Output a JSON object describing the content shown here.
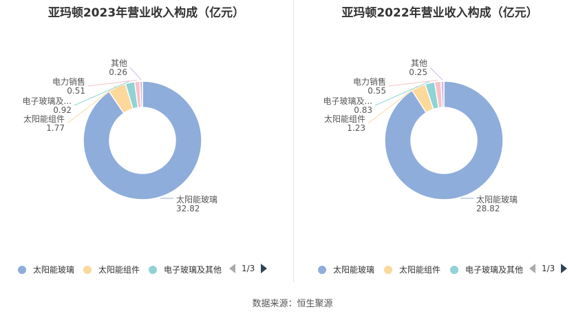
{
  "colors": [
    "#8eaddb",
    "#fcd89b",
    "#8fd3d6",
    "#f7c1c5",
    "#cdb9e5",
    "#7a8ff0"
  ],
  "legend": {
    "items": [
      "太阳能玻璃",
      "太阳能组件",
      "电子玻璃及其他"
    ],
    "page": "1/3"
  },
  "source_text": "数据来源：恒生聚源",
  "chart_data": [
    {
      "type": "pie",
      "title": "亚玛顿2023年营业收入构成（亿元）",
      "slices": [
        {
          "label": "太阳能玻璃",
          "value": 32.82
        },
        {
          "label": "太阳能组件",
          "value": 1.77
        },
        {
          "label": "电子玻璃及...",
          "value": 0.92
        },
        {
          "label": "电力销售",
          "value": 0.51
        },
        {
          "label": "其他",
          "value": 0.26
        }
      ]
    },
    {
      "type": "pie",
      "title": "亚玛顿2022年营业收入构成（亿元）",
      "slices": [
        {
          "label": "太阳能玻璃",
          "value": 28.82
        },
        {
          "label": "太阳能组件",
          "value": 1.23
        },
        {
          "label": "电子玻璃及...",
          "value": 0.83
        },
        {
          "label": "电力销售",
          "value": 0.55
        },
        {
          "label": "其他",
          "value": 0.25
        }
      ]
    }
  ]
}
